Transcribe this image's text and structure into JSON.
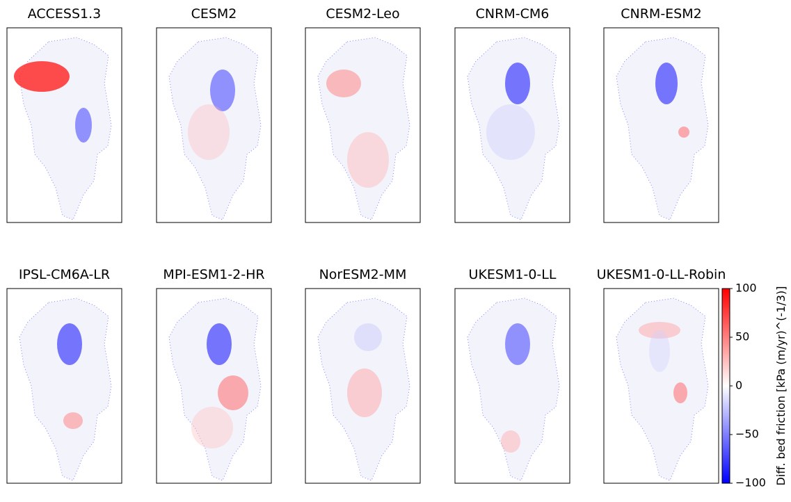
{
  "chart_data": {
    "type": "map-grid",
    "panels": [
      "ACCESS1.3",
      "CESM2",
      "CESM2-Leo",
      "CNRM-CM6",
      "CNRM-ESM2",
      "IPSL-CM6A-LR",
      "MPI-ESM1-2-HR",
      "NorESM2-MM",
      "UKESM1-0-LL",
      "UKESM1-0-LL-Robin"
    ],
    "colorbar": {
      "label": "Diff. bed friction [kPa (m/yr)^(-1/3)]",
      "lim": [
        -100,
        100
      ],
      "ticks": [
        {
          "value": -100,
          "label": "−100"
        },
        {
          "value": -50,
          "label": "−50"
        },
        0,
        50,
        100
      ],
      "colors": [
        "#0000ff",
        "#ffffff",
        "#ff0000"
      ]
    }
  }
}
